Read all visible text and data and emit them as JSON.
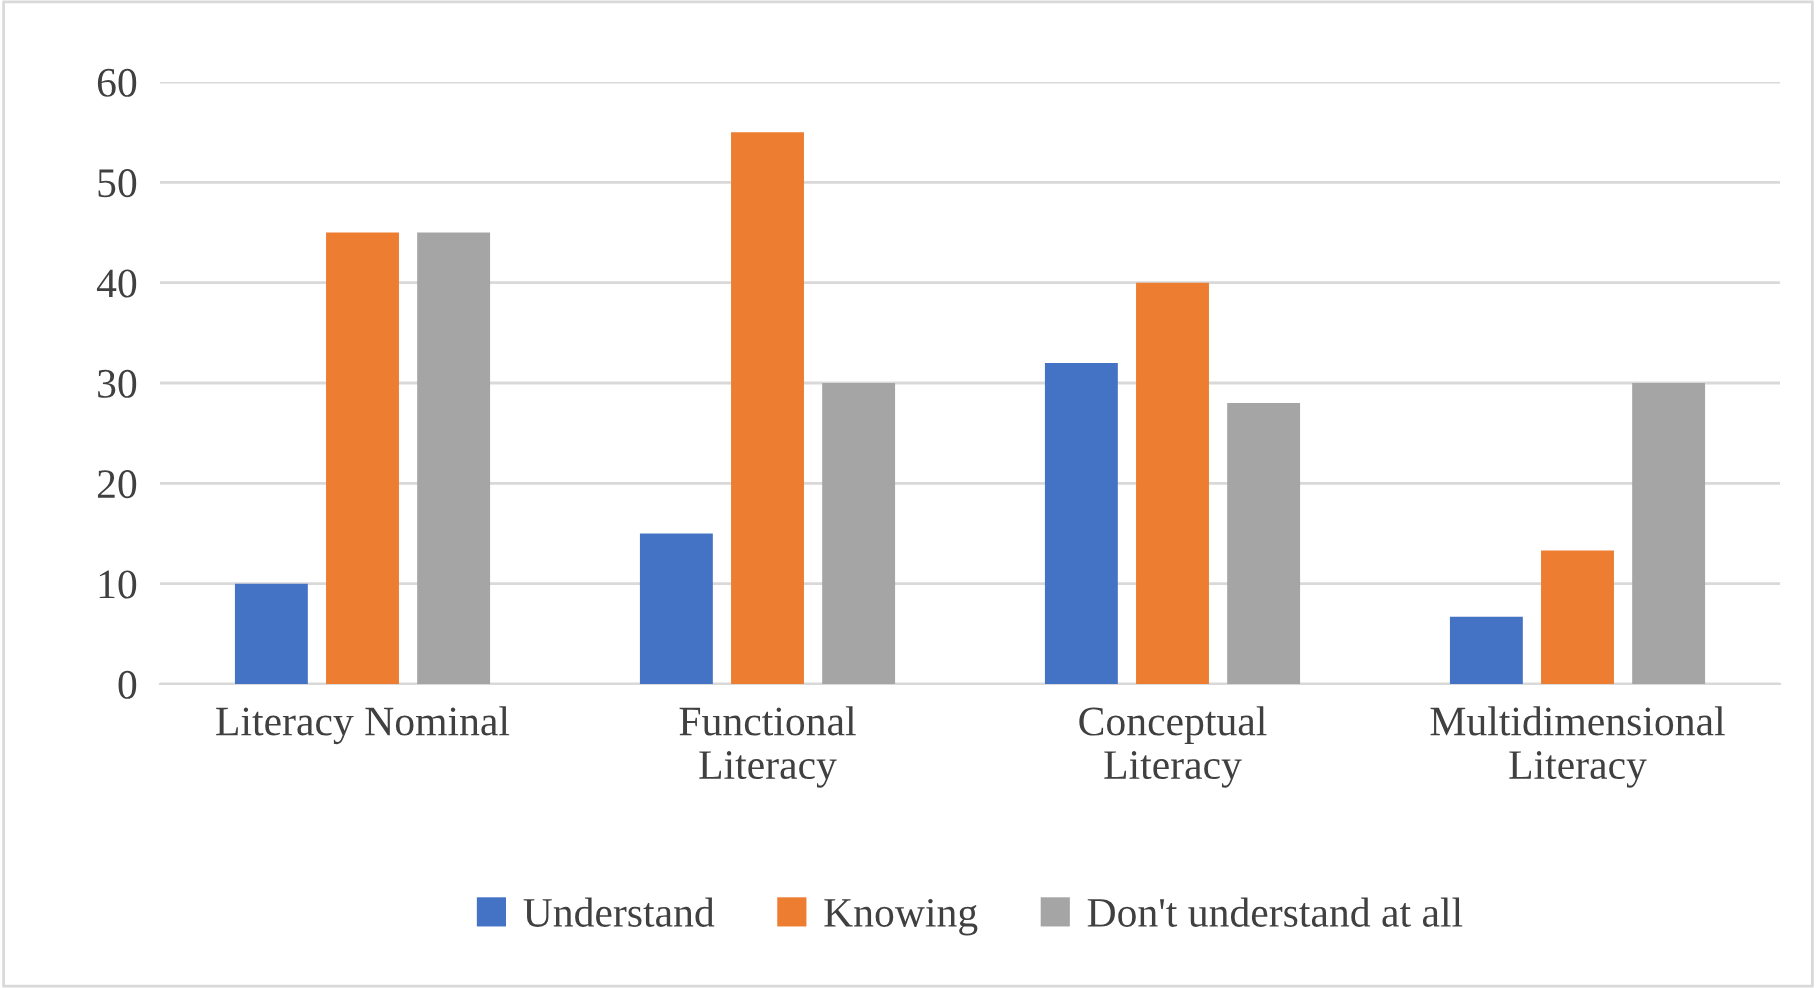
{
  "chart_data": {
    "type": "bar",
    "categories": [
      "Literacy Nominal",
      "Functional\nLiteracy",
      "Conceptual\nLiteracy",
      "Multidimensional\nLiteracy"
    ],
    "series": [
      {
        "name": "Understand",
        "color": "#4472c4",
        "values": [
          10,
          15,
          32,
          6.7
        ]
      },
      {
        "name": "Knowing",
        "color": "#ed7d31",
        "values": [
          45,
          55,
          40,
          13.3
        ]
      },
      {
        "name": "Don't understand at all",
        "color": "#a5a5a5",
        "values": [
          45,
          30,
          28,
          30
        ]
      }
    ],
    "ylim": [
      0,
      60
    ],
    "yticks": [
      0,
      10,
      20,
      30,
      40,
      50,
      60
    ],
    "grid": "y",
    "legend": "bottom"
  }
}
